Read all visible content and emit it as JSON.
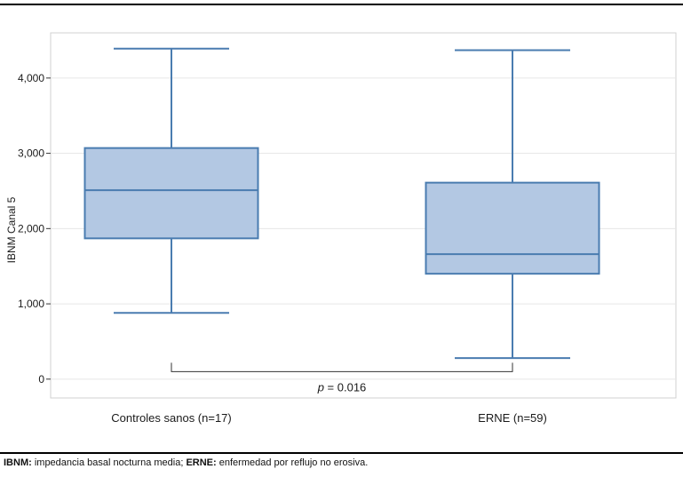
{
  "chart_data": {
    "type": "box",
    "ylabel": "IBNM Canal 5",
    "xlabel": "",
    "ylim": [
      -250,
      4600
    ],
    "yticks": [
      0,
      1000,
      2000,
      3000,
      4000
    ],
    "ytick_labels": [
      "0",
      "1,000",
      "2,000",
      "3,000",
      "4,000"
    ],
    "grid": true,
    "categories": [
      "Controles sanos (n=17)",
      "ERNE (n=59)"
    ],
    "boxes": [
      {
        "label": "Controles sanos (n=17)",
        "min": 880,
        "q1": 1870,
        "median": 2510,
        "q3": 3070,
        "max": 4390
      },
      {
        "label": "ERNE (n=59)",
        "min": 280,
        "q1": 1400,
        "median": 1660,
        "q3": 2610,
        "max": 4370
      }
    ],
    "annotation": {
      "p_label": "p",
      "p_value_text": " = 0.016",
      "bracket_y": 100
    },
    "colors": {
      "box_fill": "#b3c8e3",
      "box_stroke": "#4a7cb0",
      "grid": "#e6e6e6",
      "frame": "#d0d0d0"
    }
  },
  "footnote": {
    "abbr1": "IBNM:",
    "def1": " impedancia basal nocturna media; ",
    "abbr2": "ERNE:",
    "def2": " enfermedad por reflujo no erosiva."
  }
}
